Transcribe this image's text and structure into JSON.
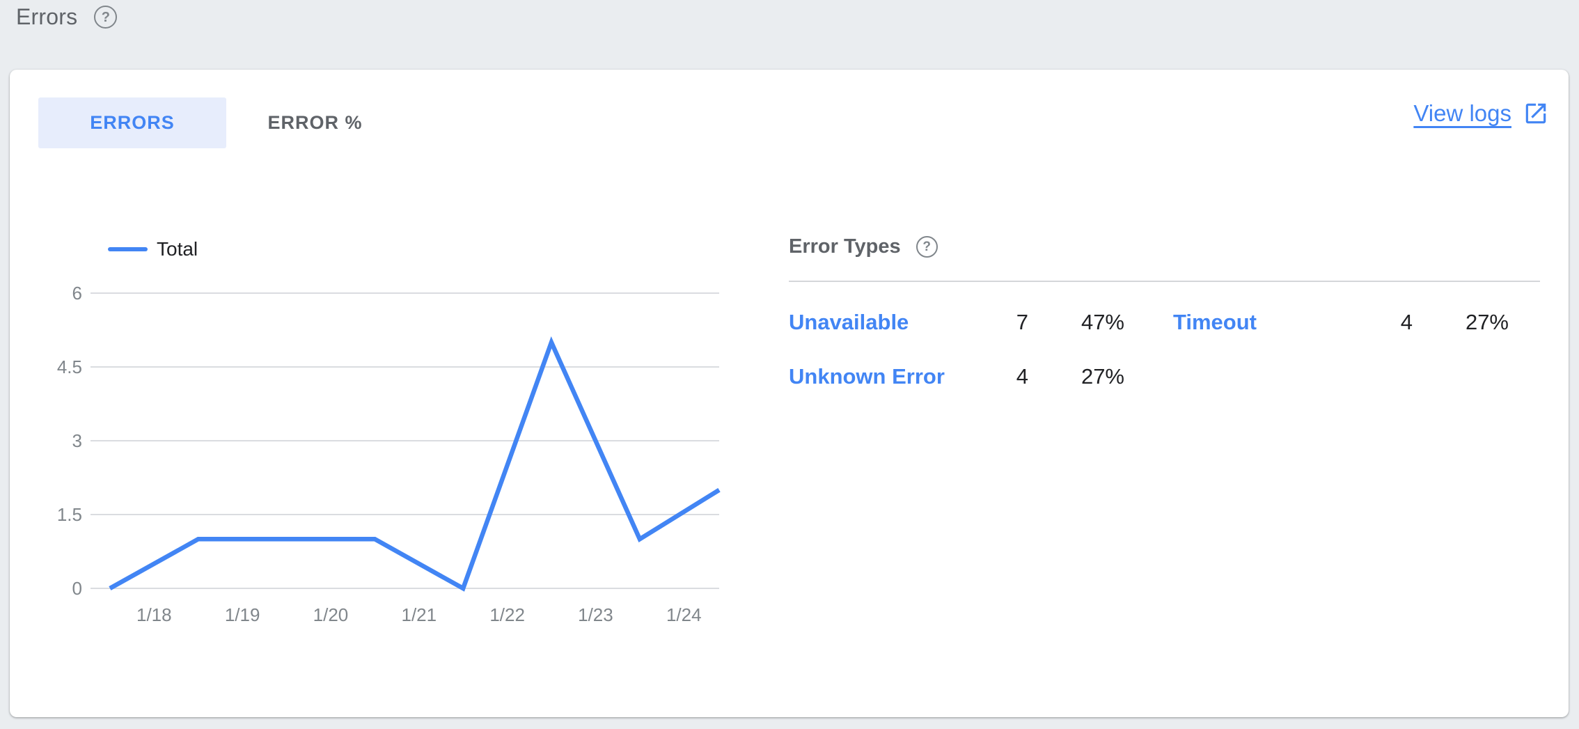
{
  "page": {
    "title": "Errors",
    "help_glyph": "?"
  },
  "card": {
    "tabs": [
      {
        "label": "ERRORS",
        "active": true
      },
      {
        "label": "ERROR %",
        "active": false
      }
    ],
    "view_logs": {
      "label": "View logs",
      "icon": "open-in-new-icon"
    }
  },
  "chart_data": {
    "type": "line",
    "title": "",
    "xlabel": "",
    "ylabel": "",
    "series": [
      {
        "name": "Total",
        "color": "#4285f4",
        "x": [
          17.5,
          18.5,
          19.5,
          20.5,
          21.5,
          22.5,
          23.5,
          24.4
        ],
        "values": [
          0,
          1,
          1,
          1,
          0,
          5,
          1,
          2
        ]
      }
    ],
    "x_tick_positions": [
      18,
      19,
      20,
      21,
      22,
      23,
      24
    ],
    "x_tick_labels": [
      "1/18",
      "1/19",
      "1/20",
      "1/21",
      "1/22",
      "1/23",
      "1/24"
    ],
    "x_range": [
      17.28,
      24.4
    ],
    "y_ticks": [
      0,
      1.5,
      3,
      4.5,
      6
    ],
    "y_tick_labels": [
      "0",
      "1.5",
      "3",
      "4.5",
      "6"
    ],
    "ylim": [
      0,
      6
    ],
    "grid": true,
    "legend_position": "top-left",
    "gridline_color": "#dadce0",
    "tick_label_color": "#80868b"
  },
  "error_types": {
    "title": "Error Types",
    "help_glyph": "?",
    "entries": [
      {
        "name": "Unavailable",
        "count": "7",
        "percent": "47%"
      },
      {
        "name": "Timeout",
        "count": "4",
        "percent": "27%"
      },
      {
        "name": "Unknown Error",
        "count": "4",
        "percent": "27%"
      }
    ]
  },
  "colors": {
    "accent_blue": "#4285f4",
    "active_tab_bg": "#e7edfc",
    "page_bg": "#eaedf0",
    "card_bg": "#ffffff"
  }
}
